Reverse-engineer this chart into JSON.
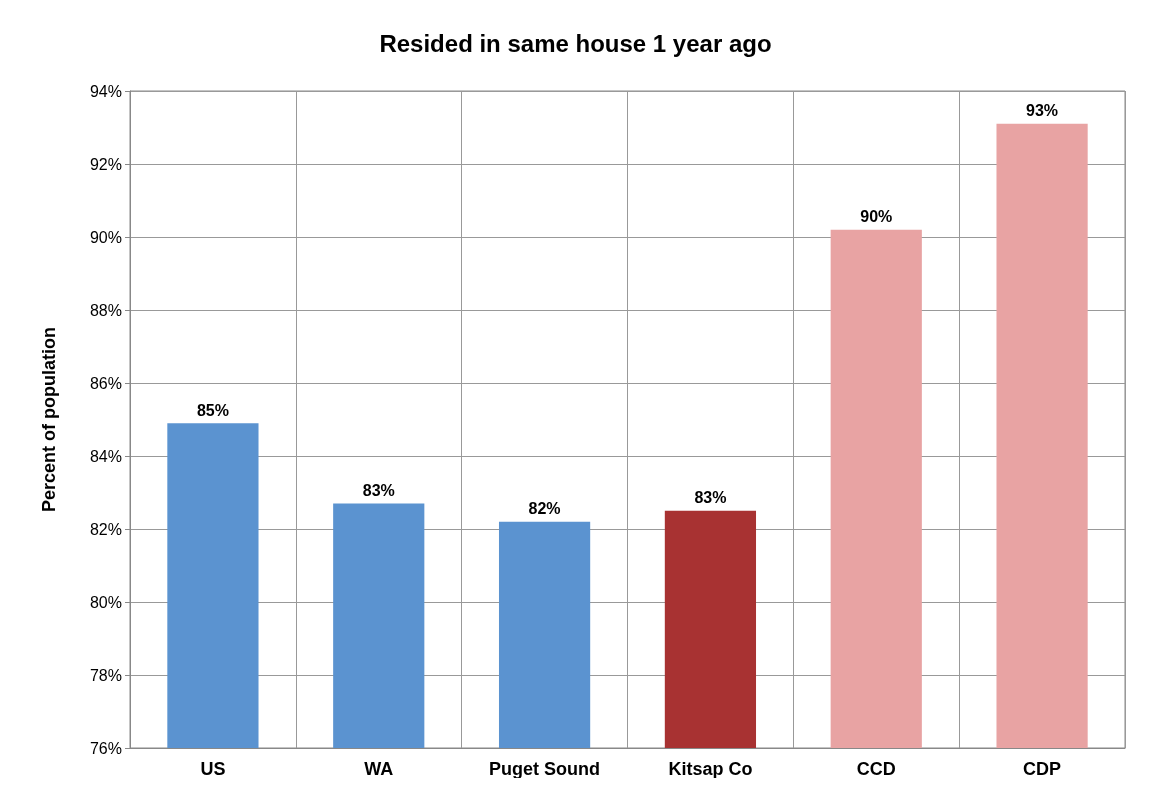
{
  "chart_data": {
    "type": "bar",
    "title": "Resided in same house 1 year ago",
    "ylabel": "Percent of population",
    "categories": [
      "US",
      "WA",
      "Puget Sound",
      "Kitsap Co",
      "CCD",
      "CDP"
    ],
    "values": [
      84.9,
      82.7,
      82.2,
      82.5,
      90.2,
      93.1
    ],
    "colors": [
      "#5b93d0",
      "#5b93d0",
      "#5b93d0",
      "#a83232",
      "#e8a3a3",
      "#e8a3a3"
    ],
    "value_labels": [
      "85%",
      "83%",
      "82%",
      "83%",
      "90%",
      "93%"
    ],
    "ylim": [
      76,
      94
    ],
    "yticks": [
      {
        "value": 76,
        "label": "76%"
      },
      {
        "value": 78,
        "label": "78%"
      },
      {
        "value": 80,
        "label": "80%"
      },
      {
        "value": 82,
        "label": "82%"
      },
      {
        "value": 84,
        "label": "84%"
      },
      {
        "value": 86,
        "label": "86%"
      },
      {
        "value": 88,
        "label": "88%"
      },
      {
        "value": 90,
        "label": "90%"
      },
      {
        "value": 92,
        "label": "92%"
      },
      {
        "value": 94,
        "label": "94%"
      }
    ],
    "grid": true
  }
}
